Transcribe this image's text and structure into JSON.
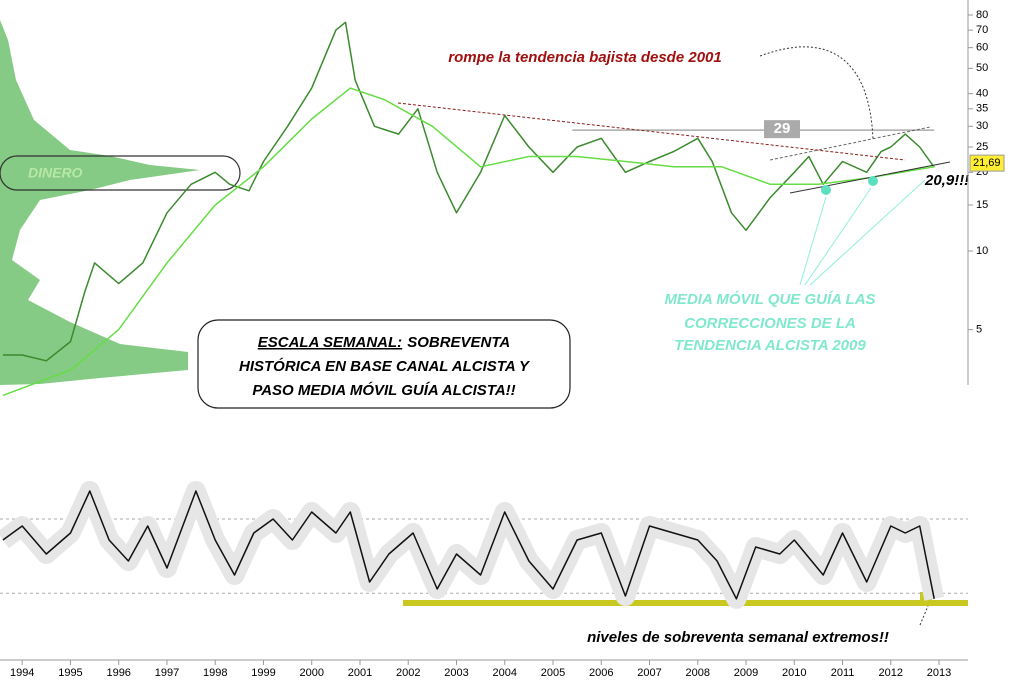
{
  "chart_data": [
    {
      "type": "line",
      "scale": "log",
      "title": "rompe la tendencia bajista desde 2001",
      "money_label": "DINERO",
      "last_note": "20,9!!!",
      "ma_note": [
        "MEDIA MÓVIL QUE GUÍA LAS",
        "CORRECCIONES DE LA",
        "TENDENCIA ALCISTA 2009"
      ],
      "box": {
        "heading": "ESCALA SEMANAL:",
        "lines": [
          "SOBREVENTA",
          "HISTÓRICA EN BASE CANAL ALCISTA Y",
          "PASO MEDIA MÓVIL GUÍA ALCISTA!!"
        ]
      },
      "resistance": 29,
      "last_price": {
        "value": 21.69,
        "label": "21,69"
      },
      "xlim": [
        1993.54,
        2013.6
      ],
      "xticks": [
        1994,
        1995,
        1996,
        1997,
        1998,
        1999,
        2000,
        2001,
        2002,
        2003,
        2004,
        2005,
        2006,
        2007,
        2008,
        2009,
        2010,
        2011,
        2012,
        2013
      ],
      "ylim": [
        3.07,
        91.3
      ],
      "yticks": [
        80,
        70,
        60,
        50,
        40,
        35,
        30,
        25,
        20,
        15,
        10,
        5
      ],
      "series": [
        {
          "name": "precio",
          "color": "#3b8a2e",
          "x": [
            1993.6,
            1994,
            1994.5,
            1995,
            1995.3,
            1995.5,
            1996,
            1996.5,
            1997,
            1997.5,
            1998,
            1998.3,
            1998.7,
            1999,
            1999.5,
            2000,
            2000.5,
            2000.7,
            2000.9,
            2001.3,
            2001.8,
            2002.2,
            2002.6,
            2003,
            2003.5,
            2004,
            2004.5,
            2005,
            2005.5,
            2006,
            2006.5,
            2007,
            2007.5,
            2008,
            2008.3,
            2008.7,
            2009,
            2009.5,
            2010,
            2010.3,
            2010.6,
            2011,
            2011.5,
            2011.8,
            2012,
            2012.3,
            2012.6,
            2012.9
          ],
          "values": [
            4,
            4,
            3.8,
            4.5,
            7,
            9,
            7.5,
            9,
            14,
            18,
            20,
            18,
            17,
            22,
            30,
            42,
            70,
            75,
            45,
            30,
            28,
            35,
            20,
            14,
            20,
            33,
            25,
            20,
            25,
            27,
            20,
            22,
            24,
            27,
            22,
            14,
            12,
            16,
            20,
            23,
            18,
            22,
            20,
            24,
            25,
            28,
            25,
            20.9
          ]
        },
        {
          "name": "media móvil",
          "color": "#66dd44",
          "x": [
            1993.6,
            1995,
            1996,
            1997,
            1998,
            1999,
            2000,
            2000.8,
            2001.5,
            2002.5,
            2003.5,
            2004.5,
            2005.5,
            2006.5,
            2007.5,
            2008.5,
            2009.5,
            2010.5,
            2011.5,
            2012.9
          ],
          "values": [
            2.8,
            3.5,
            5,
            9,
            15,
            21,
            32,
            42,
            38,
            30,
            21,
            23,
            23,
            22,
            21,
            21,
            18,
            18,
            19,
            21
          ]
        }
      ]
    },
    {
      "type": "line",
      "note": "niveles de sobreventa semanal extremos!!",
      "xlim": [
        1993.54,
        2013.6
      ],
      "ylim": [
        0,
        100
      ],
      "levels": [
        65,
        12
      ],
      "series": [
        {
          "name": "oscilador",
          "color": "#111111",
          "x": [
            1993.6,
            1994,
            1994.5,
            1995,
            1995.4,
            1995.8,
            1996.2,
            1996.6,
            1997,
            1997.6,
            1998,
            1998.4,
            1998.8,
            1999.2,
            1999.6,
            2000,
            2000.5,
            2000.8,
            2001.2,
            2001.6,
            2002.1,
            2002.6,
            2003,
            2003.5,
            2004,
            2004.5,
            2005,
            2005.5,
            2006,
            2006.5,
            2007,
            2007.5,
            2008,
            2008.4,
            2008.8,
            2009.2,
            2009.7,
            2010,
            2010.6,
            2011,
            2011.5,
            2012,
            2012.3,
            2012.6,
            2012.9
          ],
          "values": [
            50,
            60,
            40,
            55,
            85,
            50,
            35,
            60,
            30,
            85,
            50,
            25,
            55,
            65,
            50,
            70,
            55,
            70,
            20,
            40,
            55,
            15,
            40,
            25,
            70,
            35,
            15,
            50,
            55,
            10,
            60,
            55,
            50,
            35,
            8,
            45,
            40,
            50,
            25,
            55,
            20,
            60,
            55,
            60,
            8
          ]
        }
      ]
    }
  ]
}
